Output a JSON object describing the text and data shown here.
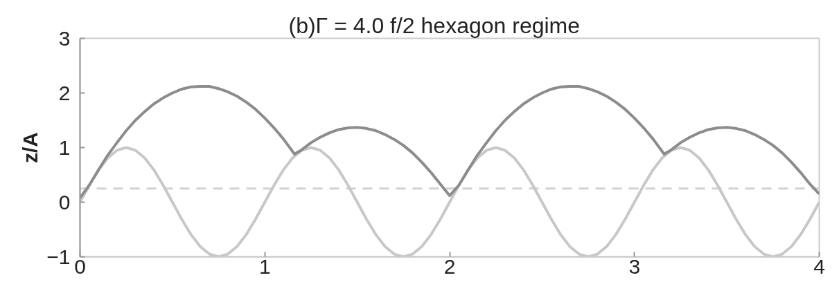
{
  "chart_data": {
    "type": "line",
    "title": "(b)Γ = 4.0      f/2 hexagon regime",
    "ylabel": "z/A",
    "xlim": [
      0,
      4
    ],
    "xticks": [
      0,
      1,
      2,
      3,
      4
    ],
    "ylim": [
      -1,
      3
    ],
    "yticks": [
      -1,
      0,
      1,
      2,
      3
    ],
    "grid": false,
    "ref_lines": [
      {
        "axis": "y",
        "value": 0.25,
        "color": "#d2d2d2",
        "line_style": "dashed"
      }
    ],
    "series": [
      {
        "color": "#c8c8c8",
        "x": [
          0,
          0.05,
          0.1,
          0.15,
          0.2,
          0.25,
          0.3,
          0.35,
          0.4,
          0.45,
          0.5,
          0.55,
          0.6,
          0.65,
          0.7,
          0.75,
          0.8,
          0.85,
          0.9,
          0.95,
          1,
          1.05,
          1.1,
          1.15,
          1.2,
          1.25,
          1.3,
          1.35,
          1.4,
          1.45,
          1.5,
          1.55,
          1.6,
          1.65,
          1.7,
          1.75,
          1.8,
          1.85,
          1.9,
          1.95,
          2,
          2.05,
          2.1,
          2.15,
          2.2,
          2.25,
          2.3,
          2.35,
          2.4,
          2.45,
          2.5,
          2.55,
          2.6,
          2.65,
          2.7,
          2.75,
          2.8,
          2.85,
          2.9,
          2.95,
          3,
          3.05,
          3.1,
          3.15,
          3.2,
          3.25,
          3.3,
          3.35,
          3.4,
          3.45,
          3.5,
          3.55,
          3.6,
          3.65,
          3.7,
          3.75,
          3.8,
          3.85,
          3.9,
          3.95,
          4
        ],
        "values": [
          0,
          0.31,
          0.59,
          0.81,
          0.95,
          1,
          0.95,
          0.81,
          0.59,
          0.31,
          0,
          -0.31,
          -0.59,
          -0.81,
          -0.95,
          -1,
          -0.95,
          -0.81,
          -0.59,
          -0.31,
          0,
          0.31,
          0.59,
          0.81,
          0.95,
          1,
          0.95,
          0.81,
          0.59,
          0.31,
          0,
          -0.31,
          -0.59,
          -0.81,
          -0.95,
          -1,
          -0.95,
          -0.81,
          -0.59,
          -0.31,
          0,
          0.31,
          0.59,
          0.81,
          0.95,
          1,
          0.95,
          0.81,
          0.59,
          0.31,
          0,
          -0.31,
          -0.59,
          -0.81,
          -0.95,
          -1,
          -0.95,
          -0.81,
          -0.59,
          -0.31,
          0,
          0.31,
          0.59,
          0.81,
          0.95,
          1,
          0.95,
          0.81,
          0.59,
          0.31,
          0,
          -0.31,
          -0.59,
          -0.81,
          -0.95,
          -1,
          -0.95,
          -0.81,
          -0.59,
          -0.31,
          0
        ]
      },
      {
        "color": "#8c8c8c",
        "x": [
          0,
          0.05,
          0.1,
          0.15,
          0.2,
          0.25,
          0.3,
          0.35,
          0.4,
          0.45,
          0.5,
          0.55,
          0.6,
          0.65,
          0.7,
          0.75,
          0.8,
          0.85,
          0.9,
          0.95,
          1,
          1.05,
          1.1,
          1.15,
          1.16,
          1.2,
          1.25,
          1.3,
          1.35,
          1.4,
          1.45,
          1.5,
          1.55,
          1.6,
          1.65,
          1.7,
          1.75,
          1.8,
          1.85,
          1.9,
          1.95,
          2,
          2.05,
          2.1,
          2.15,
          2.2,
          2.25,
          2.3,
          2.35,
          2.4,
          2.45,
          2.5,
          2.55,
          2.6,
          2.65,
          2.7,
          2.75,
          2.8,
          2.85,
          2.9,
          2.95,
          3,
          3.05,
          3.1,
          3.15,
          3.16,
          3.2,
          3.25,
          3.3,
          3.35,
          3.4,
          3.45,
          3.5,
          3.55,
          3.6,
          3.65,
          3.7,
          3.75,
          3.8,
          3.85,
          3.9,
          3.95,
          4
        ],
        "values": [
          0.08,
          0.31,
          0.59,
          0.86,
          1.09,
          1.31,
          1.5,
          1.66,
          1.8,
          1.91,
          2,
          2.07,
          2.11,
          2.12,
          2.12,
          2.08,
          2.02,
          1.94,
          1.83,
          1.7,
          1.54,
          1.36,
          1.16,
          0.93,
          0.88,
          0.96,
          1.09,
          1.19,
          1.27,
          1.33,
          1.36,
          1.37,
          1.35,
          1.31,
          1.24,
          1.15,
          1.04,
          0.9,
          0.73,
          0.54,
          0.33,
          0.12,
          0.31,
          0.59,
          0.86,
          1.09,
          1.31,
          1.5,
          1.66,
          1.8,
          1.91,
          2,
          2.07,
          2.11,
          2.12,
          2.12,
          2.08,
          2.02,
          1.94,
          1.83,
          1.7,
          1.54,
          1.36,
          1.16,
          0.93,
          0.88,
          0.96,
          1.09,
          1.19,
          1.27,
          1.33,
          1.36,
          1.37,
          1.35,
          1.31,
          1.24,
          1.15,
          1.04,
          0.9,
          0.73,
          0.54,
          0.33,
          0.15
        ]
      }
    ]
  }
}
